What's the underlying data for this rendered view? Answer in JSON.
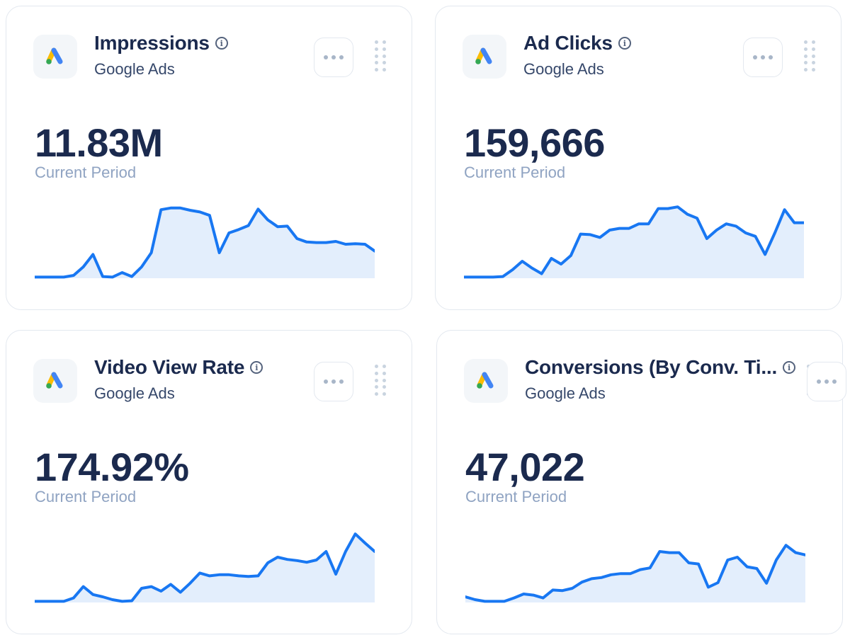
{
  "colors": {
    "line": "#1877f2",
    "fill": "#e3eefc",
    "title": "#1b2a4e",
    "muted": "#8fa3c2"
  },
  "cards": [
    {
      "title": "Impressions",
      "source": "Google Ads",
      "value": "11.83M",
      "period_label": "Current Period",
      "icons": [
        "google-ads-logo",
        "info-icon",
        "more-icon",
        "drag-handle-icon"
      ],
      "trend": [
        2,
        2,
        2,
        2,
        5,
        20,
        42,
        3,
        2,
        10,
        3,
        20,
        45,
        121,
        124,
        124,
        120,
        117,
        111,
        45,
        80,
        86,
        93,
        122,
        103,
        91,
        92,
        70,
        64,
        63,
        63,
        65,
        60,
        61,
        60,
        48
      ]
    },
    {
      "title": "Ad Clicks",
      "source": "Google Ads",
      "value": "159,666",
      "period_label": "Current Period",
      "icons": [
        "google-ads-logo",
        "info-icon",
        "more-icon",
        "drag-handle-icon"
      ],
      "trend": [
        2,
        2,
        2,
        2,
        3,
        15,
        30,
        18,
        8,
        35,
        25,
        40,
        78,
        77,
        72,
        85,
        88,
        88,
        96,
        96,
        123,
        123,
        126,
        113,
        106,
        70,
        85,
        96,
        92,
        80,
        74,
        42,
        80,
        121,
        98,
        98
      ]
    },
    {
      "title": "Video View Rate",
      "source": "Google Ads",
      "value": "174.92%",
      "period_label": "Current Period",
      "icons": [
        "google-ads-logo",
        "info-icon",
        "more-icon",
        "drag-handle-icon"
      ],
      "trend": [
        2,
        2,
        2,
        2,
        8,
        28,
        14,
        10,
        5,
        2,
        3,
        25,
        28,
        20,
        32,
        18,
        34,
        52,
        47,
        49,
        49,
        47,
        46,
        47,
        70,
        80,
        76,
        74,
        71,
        75,
        90,
        50,
        90,
        121,
        105,
        90
      ]
    },
    {
      "title": "Conversions (By Conv. Ti...",
      "source": "Google Ads",
      "value": "47,022",
      "period_label": "Current Period",
      "icons": [
        "google-ads-logo",
        "info-icon",
        "more-icon",
        "drag-handle-icon"
      ],
      "trend": [
        10,
        5,
        2,
        2,
        2,
        8,
        15,
        13,
        8,
        22,
        21,
        25,
        36,
        42,
        44,
        49,
        51,
        51,
        58,
        61,
        90,
        88,
        88,
        70,
        68,
        27,
        35,
        75,
        80,
        63,
        60,
        34,
        75,
        101,
        88,
        84
      ]
    }
  ]
}
